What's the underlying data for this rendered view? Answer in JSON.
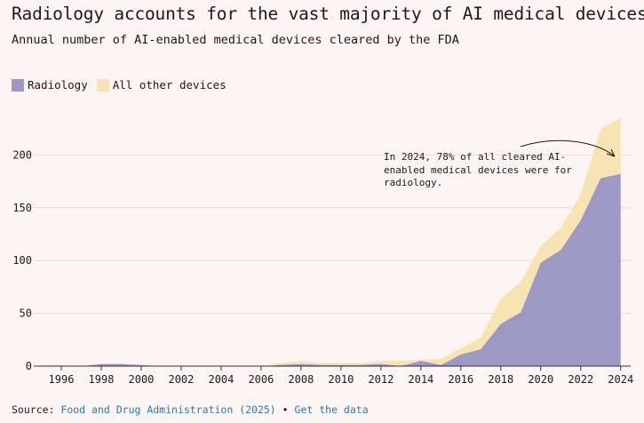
{
  "title": "Radiology accounts for the vast majority of AI medical devices",
  "subtitle": "Annual number of AI-enabled medical devices cleared by the FDA",
  "legend": [
    {
      "label": "Radiology",
      "color": "#9c99c4"
    },
    {
      "label": "All other devices",
      "color": "#f8e4b2"
    }
  ],
  "annotation": "In 2024, 78% of all cleared AI-\nenabled medical devices were for\nradiology.",
  "footer": {
    "source_prefix": "Source:",
    "source_link": "Food and Drug Administration (2025)",
    "separator": "•",
    "data_link": "Get the data"
  },
  "chart_data": {
    "type": "area",
    "stacked": true,
    "x": [
      1995,
      1996,
      1997,
      1998,
      1999,
      2000,
      2001,
      2002,
      2003,
      2004,
      2005,
      2006,
      2007,
      2008,
      2009,
      2010,
      2011,
      2012,
      2013,
      2014,
      2015,
      2016,
      2017,
      2018,
      2019,
      2020,
      2021,
      2022,
      2023,
      2024
    ],
    "series": [
      {
        "name": "Radiology",
        "color": "#9c99c4",
        "values": [
          0,
          0,
          0,
          2,
          2,
          1,
          0,
          0,
          0,
          0,
          0,
          0,
          1,
          2,
          1,
          1,
          1,
          2,
          0,
          5,
          1,
          11,
          16,
          40,
          51,
          98,
          110,
          138,
          178,
          182
        ]
      },
      {
        "name": "All other devices",
        "color": "#f8e4b2",
        "values": [
          1,
          1,
          0,
          0,
          0,
          0,
          0,
          0,
          0,
          0,
          0,
          0,
          2,
          3,
          2,
          2,
          2,
          3,
          5,
          1,
          6,
          6,
          11,
          24,
          29,
          16,
          21,
          25,
          47,
          53
        ]
      }
    ],
    "xticks": [
      "1996",
      "1998",
      "2000",
      "2002",
      "2004",
      "2006",
      "2008",
      "2010",
      "2012",
      "2014",
      "2016",
      "2018",
      "2020",
      "2022",
      "2024"
    ],
    "yticks": [
      0,
      50,
      100,
      150,
      200
    ],
    "ylim": [
      0,
      250
    ],
    "xlim": [
      1994.8,
      2024.5
    ],
    "grid": true,
    "legend_position": "top-left"
  }
}
